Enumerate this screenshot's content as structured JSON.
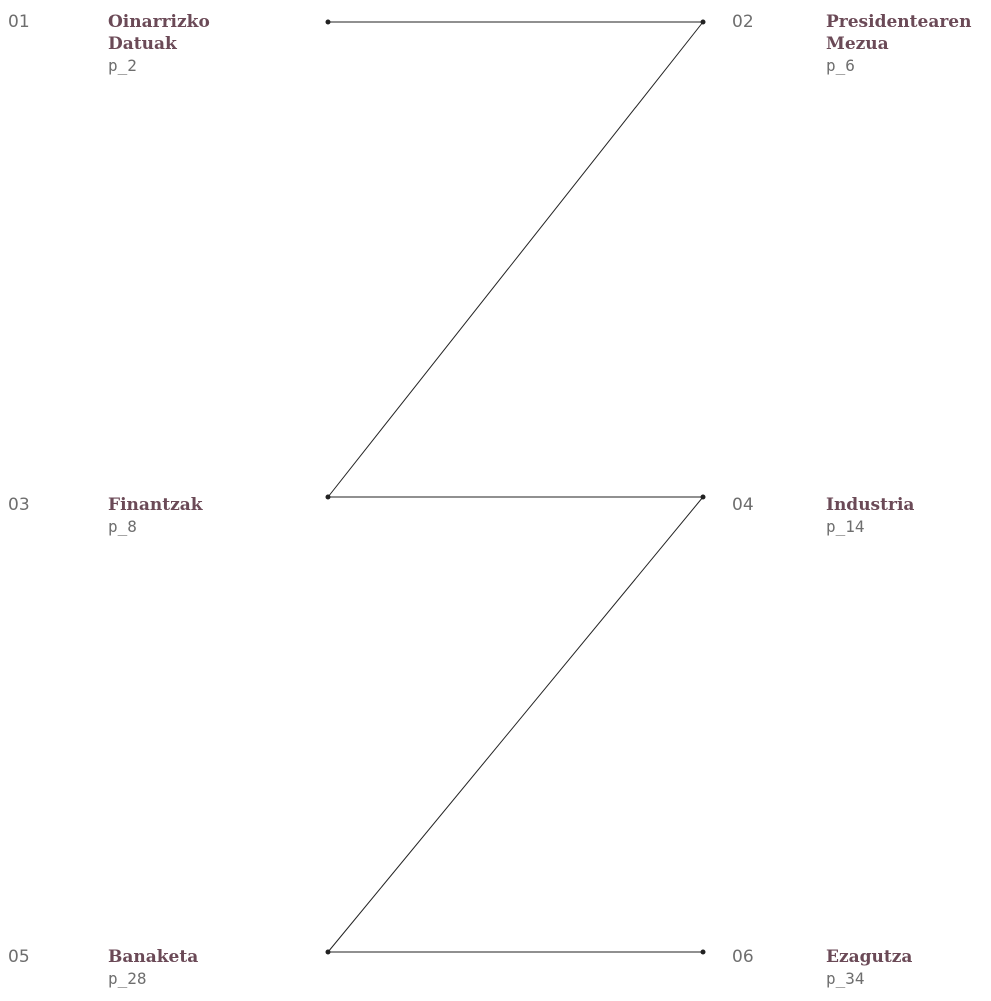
{
  "sections": [
    {
      "number": "01",
      "title": "Oinarrizko\nDatuak",
      "page": "p_2"
    },
    {
      "number": "02",
      "title": "Presidentearen\nMezua",
      "page": "p_6"
    },
    {
      "number": "03",
      "title": "Finantzak",
      "page": "p_8"
    },
    {
      "number": "04",
      "title": "Industria",
      "page": "p_14"
    },
    {
      "number": "05",
      "title": "Banaketa",
      "page": "p_28"
    },
    {
      "number": "06",
      "title": "Ezagutza",
      "page": "p_34"
    }
  ],
  "colors": {
    "title": "#6b4a57",
    "number": "#6e6e6e",
    "page": "#6e6e6e",
    "line": "#222222"
  }
}
